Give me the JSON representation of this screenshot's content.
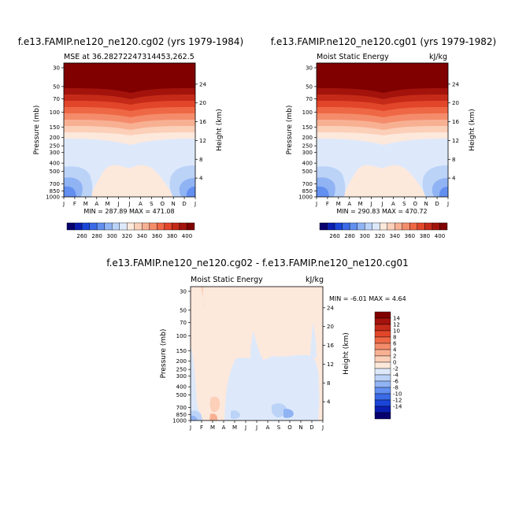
{
  "chart_data": [
    {
      "type": "heatmap",
      "title": "f.e13.FAMIP.ne120_ne120.cg02 (yrs 1979-1984)",
      "subtitle_left": "MSE at 36.28272247314453,262.5",
      "subtitle_right": "",
      "xlabel": "",
      "ylabel": "Pressure (mb)",
      "ylabel_right": "Height (km)",
      "months": [
        "J",
        "F",
        "M",
        "A",
        "M",
        "J",
        "J",
        "A",
        "S",
        "O",
        "N",
        "D",
        "J"
      ],
      "pressure_ticks": [
        "30",
        "50",
        "70",
        "100",
        "150",
        "200",
        "250",
        "300",
        "400",
        "500",
        "700",
        "850",
        "1000"
      ],
      "height_ticks": [
        "24",
        "20",
        "16",
        "12",
        "8",
        "4"
      ],
      "minmax": "MIN = 287.89  MAX = 471.08",
      "variable": "Moist Static Energy",
      "units": "kJ/kg"
    },
    {
      "type": "heatmap",
      "title": "f.e13.FAMIP.ne120_ne120.cg01 (yrs 1979-1982)",
      "subtitle_left": "Moist Static Energy",
      "subtitle_right": "kJ/kg",
      "xlabel": "",
      "ylabel": "Pressure (mb)",
      "ylabel_right": "Height (km)",
      "months": [
        "J",
        "F",
        "M",
        "A",
        "M",
        "J",
        "J",
        "A",
        "S",
        "O",
        "N",
        "D",
        "J"
      ],
      "pressure_ticks": [
        "30",
        "50",
        "70",
        "100",
        "150",
        "200",
        "250",
        "300",
        "400",
        "500",
        "700",
        "850",
        "1000"
      ],
      "height_ticks": [
        "24",
        "20",
        "16",
        "12",
        "8",
        "4"
      ],
      "minmax": "MIN = 290.83  MAX = 470.72",
      "variable": "Moist Static Energy",
      "units": "kJ/kg"
    },
    {
      "type": "heatmap",
      "title": "f.e13.FAMIP.ne120_ne120.cg02 - f.e13.FAMIP.ne120_ne120.cg01",
      "subtitle_left": "Moist Static Energy",
      "subtitle_right": "kJ/kg",
      "xlabel": "",
      "ylabel": "Pressure (mb)",
      "ylabel_right": "Height (km)",
      "months": [
        "J",
        "F",
        "M",
        "A",
        "M",
        "J",
        "J",
        "A",
        "S",
        "O",
        "N",
        "D",
        "J"
      ],
      "pressure_ticks": [
        "30",
        "50",
        "70",
        "100",
        "150",
        "200",
        "250",
        "300",
        "400",
        "500",
        "700",
        "850",
        "1000"
      ],
      "height_ticks": [
        "24",
        "20",
        "16",
        "12",
        "8",
        "4"
      ],
      "minmax": "MIN =   -6.01  MAX =    4.64",
      "variable": "Moist Static Energy",
      "units": "kJ/kg"
    }
  ],
  "colorbar_mse": {
    "labels": [
      "260",
      "280",
      "300",
      "320",
      "340",
      "360",
      "380",
      "400"
    ],
    "colors": [
      "#08006e",
      "#0a1fb0",
      "#1b45d8",
      "#3a6ae6",
      "#628ff0",
      "#90b3f4",
      "#bcd3f8",
      "#dde9fb",
      "#fde8dc",
      "#fbcfb8",
      "#f8b093",
      "#f48c6b",
      "#ef6845",
      "#e2462a",
      "#c52a18",
      "#a3130c",
      "#800000"
    ]
  },
  "colorbar_diff": {
    "labels": [
      "14",
      "12",
      "10",
      "8",
      "6",
      "4",
      "2",
      "0",
      "-2",
      "-4",
      "-6",
      "-8",
      "-10",
      "-12",
      "-14"
    ],
    "colors": [
      "#800000",
      "#a3130c",
      "#c52a18",
      "#e2462a",
      "#ef6845",
      "#f48c6b",
      "#f8b093",
      "#fbcfb8",
      "#fde8dc",
      "#dde9fb",
      "#bcd3f8",
      "#90b3f4",
      "#628ff0",
      "#3a6ae6",
      "#1b45d8",
      "#0a1fb0",
      "#08006e"
    ]
  }
}
